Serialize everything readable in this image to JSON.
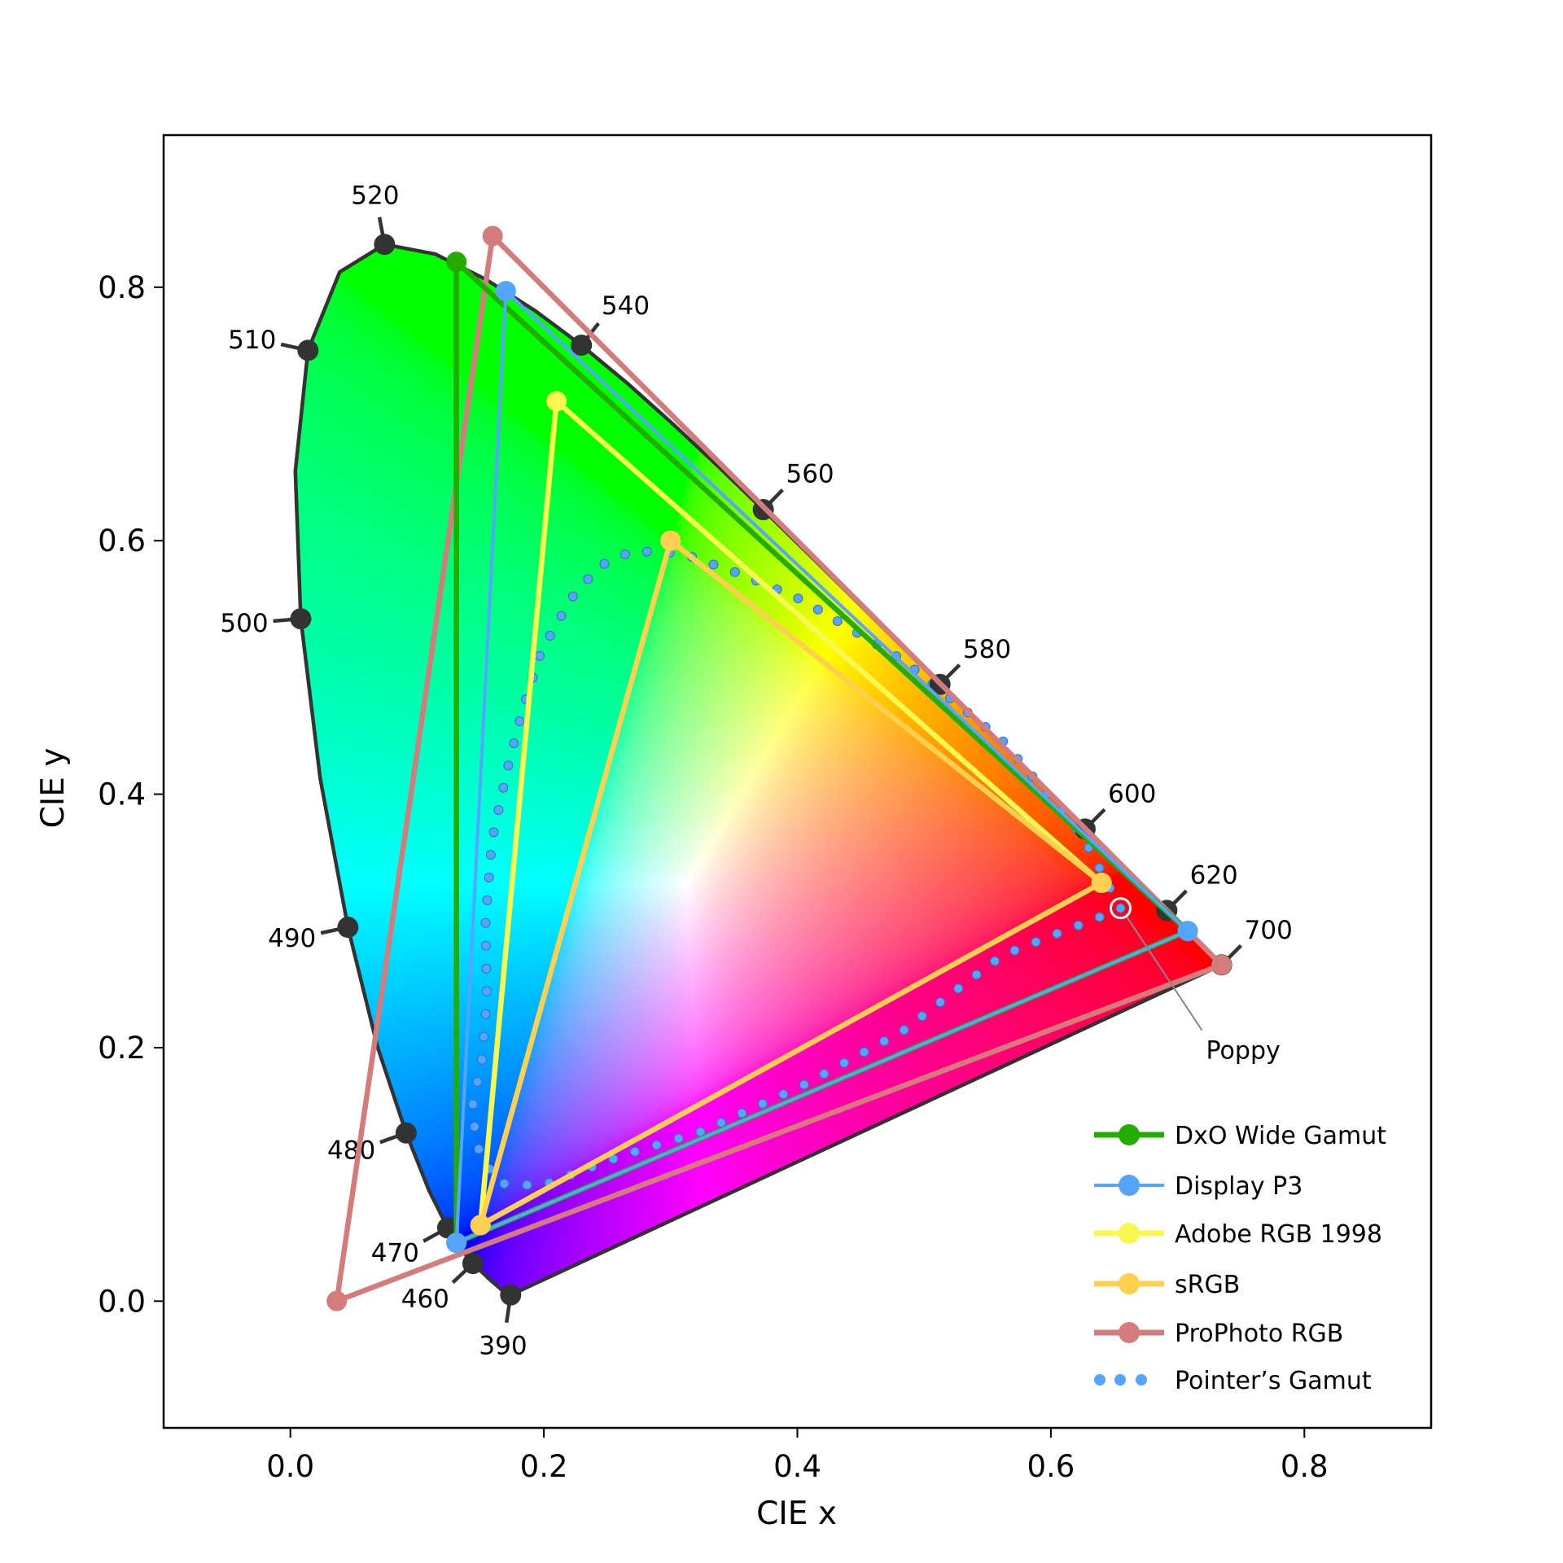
{
  "chart_data": {
    "type": "scatter",
    "title": "",
    "xlabel": "CIE x",
    "ylabel": "CIE y",
    "xlim": [
      -0.1,
      0.9
    ],
    "ylim": [
      -0.1,
      0.92
    ],
    "xticks": [
      "0.0",
      "0.2",
      "0.4",
      "0.6",
      "0.8"
    ],
    "yticks": [
      "0.0",
      "0.2",
      "0.4",
      "0.6",
      "0.8"
    ],
    "grid": false,
    "legend_position": "bottom-right",
    "spectral_locus": {
      "outline_color": "#333333",
      "points": [
        [
          380,
          0.1741,
          0.005
        ],
        [
          390,
          0.1738,
          0.0049
        ],
        [
          400,
          0.1733,
          0.0048
        ],
        [
          410,
          0.1726,
          0.0048
        ],
        [
          420,
          0.1714,
          0.0051
        ],
        [
          430,
          0.1689,
          0.0069
        ],
        [
          440,
          0.1644,
          0.0109
        ],
        [
          450,
          0.1566,
          0.0177
        ],
        [
          460,
          0.144,
          0.0297
        ],
        [
          465,
          0.1355,
          0.0399
        ],
        [
          470,
          0.1241,
          0.0578
        ],
        [
          475,
          0.1096,
          0.0868
        ],
        [
          480,
          0.0913,
          0.1327
        ],
        [
          485,
          0.0687,
          0.2007
        ],
        [
          490,
          0.0454,
          0.295
        ],
        [
          495,
          0.0235,
          0.4127
        ],
        [
          500,
          0.0082,
          0.5384
        ],
        [
          505,
          0.0039,
          0.6548
        ],
        [
          510,
          0.0139,
          0.7502
        ],
        [
          515,
          0.0389,
          0.812
        ],
        [
          520,
          0.0743,
          0.8338
        ],
        [
          525,
          0.1142,
          0.8262
        ],
        [
          530,
          0.1547,
          0.8059
        ],
        [
          535,
          0.1929,
          0.7816
        ],
        [
          540,
          0.2296,
          0.7543
        ],
        [
          545,
          0.2658,
          0.7243
        ],
        [
          550,
          0.3016,
          0.6923
        ],
        [
          555,
          0.3373,
          0.6589
        ],
        [
          560,
          0.3731,
          0.6245
        ],
        [
          565,
          0.4087,
          0.5896
        ],
        [
          570,
          0.4441,
          0.5547
        ],
        [
          575,
          0.4788,
          0.5202
        ],
        [
          580,
          0.5125,
          0.4866
        ],
        [
          585,
          0.5448,
          0.4544
        ],
        [
          590,
          0.5752,
          0.4242
        ],
        [
          595,
          0.6029,
          0.3965
        ],
        [
          600,
          0.627,
          0.3725
        ],
        [
          605,
          0.6482,
          0.3514
        ],
        [
          610,
          0.6658,
          0.334
        ],
        [
          615,
          0.6801,
          0.3197
        ],
        [
          620,
          0.6915,
          0.3083
        ],
        [
          630,
          0.7079,
          0.292
        ],
        [
          640,
          0.719,
          0.2809
        ],
        [
          650,
          0.726,
          0.274
        ],
        [
          660,
          0.73,
          0.27
        ],
        [
          680,
          0.7334,
          0.2666
        ],
        [
          700,
          0.7347,
          0.2653
        ]
      ],
      "labeled_wavelengths": [
        "390",
        "460",
        "470",
        "480",
        "490",
        "500",
        "510",
        "520",
        "540",
        "560",
        "580",
        "600",
        "620",
        "700"
      ]
    },
    "series": [
      {
        "name": "ProPhoto RGB",
        "color": "#d47c7c",
        "vertices": [
          [
            0.7347,
            0.2653
          ],
          [
            0.1596,
            0.8404
          ],
          [
            0.0366,
            0.0001
          ]
        ]
      },
      {
        "name": "DxO Wide Gamut",
        "color": "#23ad00",
        "vertices": [
          [
            0.708,
            0.292
          ],
          [
            0.131,
            0.82
          ],
          [
            0.131,
            0.046
          ]
        ]
      },
      {
        "name": "Display P3",
        "color": "#55a4ff",
        "vertices": [
          [
            0.708,
            0.292
          ],
          [
            0.17,
            0.797
          ],
          [
            0.131,
            0.046
          ]
        ]
      },
      {
        "name": "Adobe RGB 1998",
        "color": "#f8f84f",
        "vertices": [
          [
            0.64,
            0.33
          ],
          [
            0.21,
            0.71
          ],
          [
            0.15,
            0.06
          ]
        ]
      },
      {
        "name": "sRGB",
        "color": "#ffcf4f",
        "vertices": [
          [
            0.64,
            0.33
          ],
          [
            0.3,
            0.6
          ],
          [
            0.15,
            0.06
          ]
        ]
      }
    ],
    "pointers_gamut": {
      "name": "Pointer’s Gamut",
      "color": "#55a4ff",
      "points": [
        [
          0.655,
          0.31
        ],
        [
          0.625,
          0.367
        ],
        [
          0.562,
          0.442
        ],
        [
          0.483,
          0.506
        ],
        [
          0.404,
          0.553
        ],
        [
          0.357,
          0.573
        ],
        [
          0.309,
          0.59
        ],
        [
          0.27,
          0.592
        ],
        [
          0.244,
          0.58
        ],
        [
          0.222,
          0.555
        ],
        [
          0.198,
          0.513
        ],
        [
          0.183,
          0.466
        ],
        [
          0.171,
          0.419
        ],
        [
          0.159,
          0.363
        ],
        [
          0.154,
          0.3
        ],
        [
          0.155,
          0.237
        ],
        [
          0.151,
          0.19
        ],
        [
          0.143,
          0.15
        ],
        [
          0.149,
          0.118
        ],
        [
          0.164,
          0.093
        ],
        [
          0.198,
          0.091
        ],
        [
          0.262,
          0.115
        ],
        [
          0.325,
          0.134
        ],
        [
          0.404,
          0.17
        ],
        [
          0.483,
          0.213
        ],
        [
          0.53,
          0.249
        ],
        [
          0.562,
          0.273
        ],
        [
          0.61,
          0.292
        ],
        [
          0.641,
          0.304
        ],
        [
          0.655,
          0.31
        ]
      ]
    },
    "annotations": [
      {
        "text": "Poppy",
        "point": [
          0.655,
          0.31
        ]
      }
    ],
    "legend": [
      "DxO Wide Gamut",
      "Display P3",
      "Adobe RGB 1998",
      "sRGB",
      "ProPhoto RGB",
      "Pointer’s Gamut"
    ]
  }
}
